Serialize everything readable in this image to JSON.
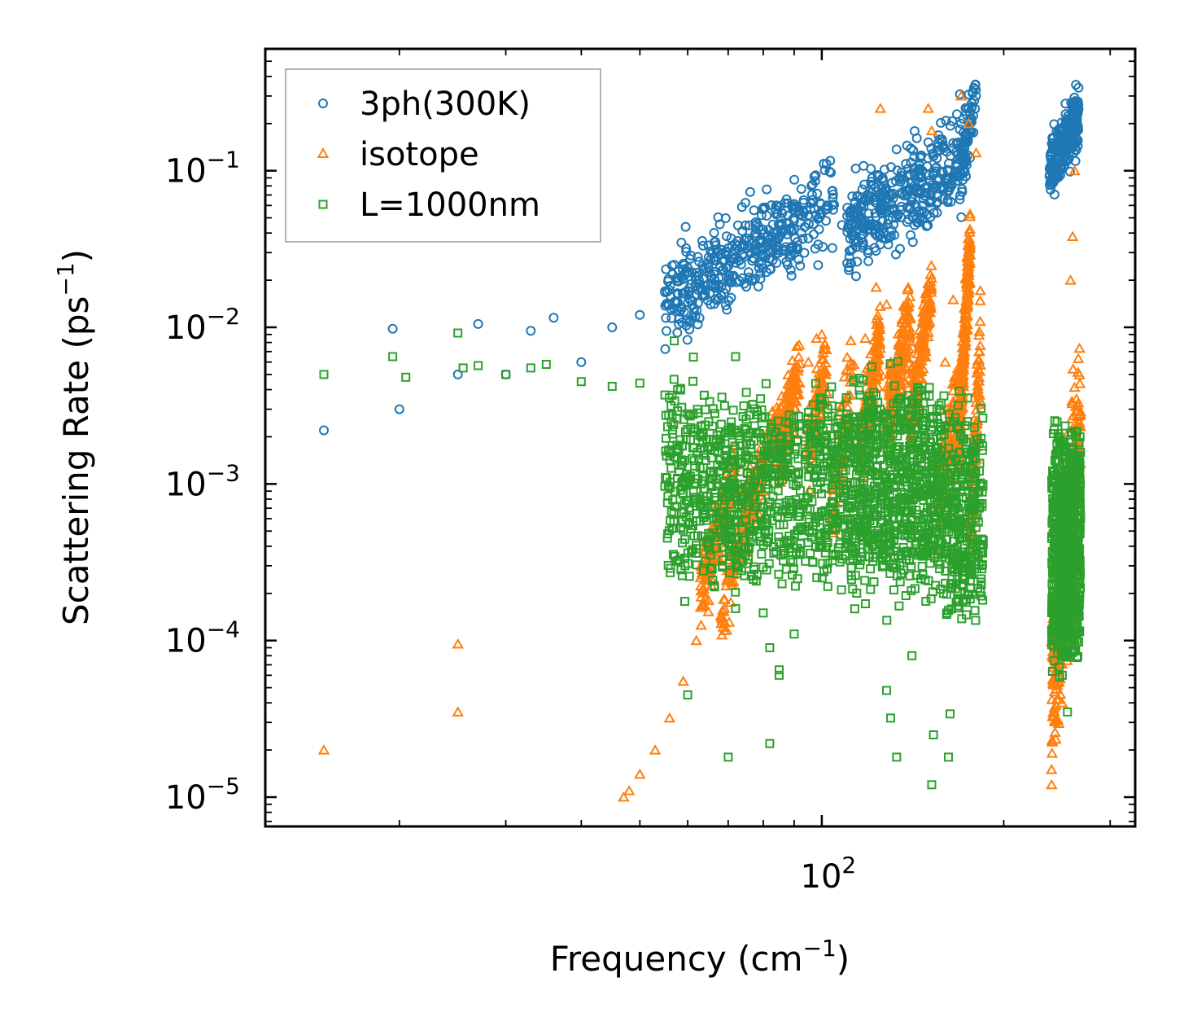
{
  "chart_data": {
    "type": "scatter",
    "xscale": "log",
    "yscale": "log",
    "xlim": [
      12,
      330
    ],
    "ylim": [
      6.5e-06,
      0.6
    ],
    "xlabel": {
      "main": "Frequency (cm",
      "sup": "−1",
      "end": ")"
    },
    "ylabel": {
      "main": "Scattering Rate (ps",
      "sup": "−1",
      "end": ")"
    },
    "x_tick_labels": [
      {
        "value": 100,
        "base": "10",
        "exp": "2"
      }
    ],
    "y_tick_labels": [
      {
        "value": 1e-05,
        "base": "10",
        "exp": "−5"
      },
      {
        "value": 0.0001,
        "base": "10",
        "exp": "−4"
      },
      {
        "value": 0.001,
        "base": "10",
        "exp": "−3"
      },
      {
        "value": 0.01,
        "base": "10",
        "exp": "−2"
      },
      {
        "value": 0.1,
        "base": "10",
        "exp": "−1"
      }
    ],
    "legend_position": "top-left",
    "series": [
      {
        "name": "3ph(300K)",
        "marker": "circle",
        "color": "#1f77b4",
        "anchors": [
          [
            15,
            0.0022
          ],
          [
            19.5,
            0.0098
          ],
          [
            20,
            0.003
          ],
          [
            25,
            0.005
          ],
          [
            27,
            0.0105
          ],
          [
            30,
            0.005
          ],
          [
            33,
            0.0095
          ],
          [
            36,
            0.0115
          ],
          [
            40,
            0.006
          ],
          [
            45,
            0.01
          ],
          [
            50,
            0.012
          ],
          [
            55,
            0.017
          ],
          [
            60,
            0.024
          ],
          [
            65,
            0.028
          ],
          [
            70,
            0.032
          ],
          [
            75,
            0.037
          ],
          [
            80,
            0.042
          ],
          [
            85,
            0.045
          ],
          [
            90,
            0.048
          ],
          [
            95,
            0.052
          ],
          [
            102,
            0.06
          ],
          [
            108,
            0.045
          ],
          [
            115,
            0.052
          ],
          [
            120,
            0.065
          ],
          [
            128,
            0.075
          ],
          [
            135,
            0.085
          ],
          [
            140,
            0.095
          ],
          [
            145,
            0.1
          ],
          [
            150,
            0.12
          ],
          [
            155,
            0.12
          ],
          [
            160,
            0.09
          ],
          [
            165,
            0.15
          ],
          [
            170,
            0.2
          ],
          [
            175,
            0.25
          ],
          [
            180,
            0.3
          ],
          [
            240,
            0.13
          ],
          [
            245,
            0.15
          ],
          [
            250,
            0.18
          ],
          [
            255,
            0.2
          ],
          [
            260,
            0.22
          ],
          [
            265,
            0.23
          ]
        ],
        "clusters": [
          {
            "x": [
              55,
              105
            ],
            "y": [
              0.014,
              0.065
            ],
            "slope": 1.1,
            "n": 420,
            "spread": 0.14
          },
          {
            "x": [
              110,
              175
            ],
            "y": [
              0.04,
              0.13
            ],
            "slope": 1.1,
            "n": 380,
            "spread": 0.15
          },
          {
            "x": [
              170,
              180
            ],
            "y": [
              0.1,
              0.33
            ],
            "slope": 1.0,
            "n": 60,
            "spread": 0.1
          },
          {
            "x": [
              238,
              266
            ],
            "y": [
              0.1,
              0.22
            ],
            "slope": 1.0,
            "n": 260,
            "spread": 0.1
          }
        ]
      },
      {
        "name": "isotope",
        "marker": "triangle",
        "color": "#ff7f0e",
        "anchors": [
          [
            15,
            2e-05
          ],
          [
            25,
            3.5e-05
          ],
          [
            25,
            9.5e-05
          ],
          [
            47,
            1e-05
          ],
          [
            48,
            1.1e-05
          ],
          [
            50,
            1.4e-05
          ],
          [
            53,
            2e-05
          ],
          [
            56,
            3.2e-05
          ],
          [
            59,
            5.5e-05
          ],
          [
            62,
            0.0001
          ],
          [
            65,
            0.00018
          ],
          [
            68,
            0.00032
          ],
          [
            75,
            0.0005
          ],
          [
            80,
            0.0009
          ],
          [
            85,
            0.0015
          ],
          [
            88,
            0.0035
          ],
          [
            90,
            0.0045
          ],
          [
            95,
            0.006
          ],
          [
            98,
            0.0085
          ],
          [
            100,
            0.009
          ],
          [
            113,
            0.0058
          ],
          [
            118,
            0.0085
          ],
          [
            123,
            0.018
          ],
          [
            125,
            0.25
          ],
          [
            128,
            0.014
          ],
          [
            130,
            0.006
          ],
          [
            135,
            0.004
          ],
          [
            140,
            0.009
          ],
          [
            150,
            0.25
          ],
          [
            152,
            0.18
          ],
          [
            160,
            0.006
          ],
          [
            165,
            0.015
          ],
          [
            170,
            0.3
          ],
          [
            175,
            0.2
          ],
          [
            180,
            0.13
          ],
          [
            240,
            1.2e-05
          ],
          [
            240,
            1.5e-05
          ],
          [
            250,
            4e-05
          ],
          [
            255,
            8e-05
          ],
          [
            258,
            0.02
          ],
          [
            260,
            0.038
          ],
          [
            262,
            0.1
          ]
        ],
        "clusters": [
          {
            "x": [
              63,
              72
            ],
            "y": [
              0.0002,
              0.0012
            ],
            "slope": 1.5,
            "n": 160,
            "spread": 0.1
          },
          {
            "x": [
              68,
              76
            ],
            "y": [
              0.00012,
              0.0009
            ],
            "slope": 1.5,
            "n": 80,
            "spread": 0.1
          },
          {
            "x": [
              75,
              85
            ],
            "y": [
              0.0006,
              0.0025
            ],
            "slope": 1.5,
            "n": 110,
            "spread": 0.1
          },
          {
            "x": [
              85,
              92
            ],
            "y": [
              0.0015,
              0.006
            ],
            "slope": 1.5,
            "n": 110,
            "spread": 0.12
          },
          {
            "x": [
              95,
              102
            ],
            "y": [
              0.0015,
              0.006
            ],
            "slope": 1.5,
            "n": 90,
            "spread": 0.12
          },
          {
            "x": [
              104,
              112
            ],
            "y": [
              0.0008,
              0.0045
            ],
            "slope": 1.2,
            "n": 70,
            "spread": 0.15
          },
          {
            "x": [
              116,
              125
            ],
            "y": [
              0.0016,
              0.009
            ],
            "slope": 1.5,
            "n": 150,
            "spread": 0.12
          },
          {
            "x": [
              128,
              140
            ],
            "y": [
              0.0025,
              0.012
            ],
            "slope": 1.5,
            "n": 170,
            "spread": 0.12
          },
          {
            "x": [
              140,
              152
            ],
            "y": [
              0.0025,
              0.018
            ],
            "slope": 1.5,
            "n": 170,
            "spread": 0.12
          },
          {
            "x": [
              155,
              168
            ],
            "y": [
              0.0007,
              0.0035
            ],
            "slope": 1.3,
            "n": 110,
            "spread": 0.15
          },
          {
            "x": [
              168,
              176
            ],
            "y": [
              0.0017,
              0.035
            ],
            "slope": 2.0,
            "n": 240,
            "spread": 0.1
          },
          {
            "x": [
              176,
              183
            ],
            "y": [
              0.0005,
              0.008
            ],
            "slope": 1.6,
            "n": 90,
            "spread": 0.14
          },
          {
            "x": [
              240,
              268
            ],
            "y": [
              5e-05,
              0.0025
            ],
            "slope": 1.0,
            "n": 320,
            "spread": 0.3
          }
        ]
      },
      {
        "name": "L=1000nm",
        "marker": "square",
        "color": "#2ca02c",
        "anchors": [
          [
            15,
            0.005
          ],
          [
            19.5,
            0.0065
          ],
          [
            20.5,
            0.0048
          ],
          [
            25,
            0.0092
          ],
          [
            25.5,
            0.0055
          ],
          [
            27,
            0.0057
          ],
          [
            30,
            0.005
          ],
          [
            33,
            0.0055
          ],
          [
            35,
            0.0058
          ],
          [
            40,
            0.0045
          ],
          [
            45,
            0.0042
          ],
          [
            50,
            0.0044
          ],
          [
            55,
            0.0037
          ],
          [
            57,
            0.0082
          ],
          [
            60,
            0.0028
          ],
          [
            65,
            0.0025
          ],
          [
            70,
            0.0022
          ],
          [
            72,
            0.0065
          ],
          [
            75,
            0.0018
          ],
          [
            80,
            0.00015
          ],
          [
            82,
            9e-05
          ],
          [
            85,
            6.5e-05
          ],
          [
            90,
            0.00011
          ],
          [
            60,
            4.5e-05
          ],
          [
            70,
            1.8e-05
          ],
          [
            72,
            0.00016
          ],
          [
            82,
            2.2e-05
          ],
          [
            85,
            6e-05
          ],
          [
            128,
            4.8e-05
          ],
          [
            130,
            3.2e-05
          ],
          [
            133,
            1.8e-05
          ],
          [
            141,
            8e-05
          ],
          [
            152,
            1.2e-05
          ],
          [
            153,
            2.5e-05
          ],
          [
            163,
            3.4e-05
          ],
          [
            162,
            1.8e-05
          ],
          [
            255,
            3.5e-05
          ],
          [
            250,
            6e-05
          ]
        ],
        "clusters": [
          {
            "x": [
              55,
              110
            ],
            "y": [
              0.0003,
              0.003
            ],
            "slope": 0.0,
            "n": 900,
            "spread": 0.32
          },
          {
            "x": [
              110,
              160
            ],
            "y": [
              0.0003,
              0.003
            ],
            "slope": 0.0,
            "n": 850,
            "spread": 0.36
          },
          {
            "x": [
              160,
              185
            ],
            "y": [
              0.0002,
              0.002
            ],
            "slope": 0.0,
            "n": 300,
            "spread": 0.32
          },
          {
            "x": [
              240,
              268
            ],
            "y": [
              0.0001,
              0.0015
            ],
            "slope": 0.0,
            "n": 850,
            "spread": 0.3
          }
        ]
      }
    ]
  }
}
